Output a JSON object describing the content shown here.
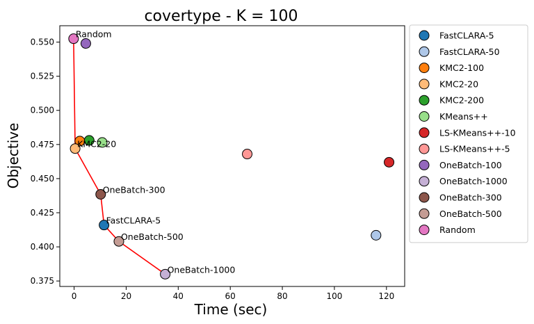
{
  "chart_data": {
    "type": "scatter",
    "title": "covertype - K = 100",
    "xlabel": "Time (sec)",
    "ylabel": "Objective",
    "xlim": [
      -5.5,
      127
    ],
    "ylim": [
      0.371,
      0.562
    ],
    "xticks": [
      0,
      20,
      40,
      60,
      80,
      100,
      120
    ],
    "yticks": [
      0.375,
      0.4,
      0.425,
      0.45,
      0.475,
      0.5,
      0.525,
      0.55
    ],
    "ytick_labels": [
      "0.375",
      "0.400",
      "0.425",
      "0.450",
      "0.475",
      "0.500",
      "0.525",
      "0.550"
    ],
    "grid": false,
    "legend_position": "outside-right",
    "series": [
      {
        "name": "FastCLARA-5",
        "color": "#1f77b4",
        "x": 11.5,
        "y": 0.416,
        "label": "FastCLARA-5"
      },
      {
        "name": "FastCLARA-50",
        "color": "#aec7e8",
        "x": 116,
        "y": 0.4085,
        "label": ""
      },
      {
        "name": "KMC2-100",
        "color": "#ff7f0e",
        "x": 2.2,
        "y": 0.4775,
        "label": ""
      },
      {
        "name": "KMC2-20",
        "color": "#ffbb78",
        "x": 0.4,
        "y": 0.472,
        "label": "KMC2-20"
      },
      {
        "name": "KMC2-200",
        "color": "#2ca02c",
        "x": 5.8,
        "y": 0.478,
        "label": ""
      },
      {
        "name": "KMeans++",
        "color": "#98df8a",
        "x": 10.8,
        "y": 0.4765,
        "label": ""
      },
      {
        "name": "LS-KMeans++-10",
        "color": "#d62728",
        "x": 121,
        "y": 0.462,
        "label": ""
      },
      {
        "name": "LS-KMeans++-5",
        "color": "#ff9896",
        "x": 66.5,
        "y": 0.468,
        "label": ""
      },
      {
        "name": "OneBatch-100",
        "color": "#9467bd",
        "x": 4.5,
        "y": 0.549,
        "label": ""
      },
      {
        "name": "OneBatch-1000",
        "color": "#c5b0d5",
        "x": 35,
        "y": 0.38,
        "label": "OneBatch-1000"
      },
      {
        "name": "OneBatch-300",
        "color": "#8c564b",
        "x": 10.2,
        "y": 0.4385,
        "label": "OneBatch-300"
      },
      {
        "name": "OneBatch-500",
        "color": "#c49c94",
        "x": 17.2,
        "y": 0.404,
        "label": "OneBatch-500"
      },
      {
        "name": "Random",
        "color": "#e377c2",
        "x": -0.2,
        "y": 0.5525,
        "label": "Random"
      }
    ],
    "pareto_front": {
      "color": "#ff0000",
      "x": [
        -0.2,
        0.4,
        10.2,
        11.5,
        17.2,
        35
      ],
      "y": [
        0.5525,
        0.472,
        0.4385,
        0.416,
        0.404,
        0.38
      ]
    }
  }
}
